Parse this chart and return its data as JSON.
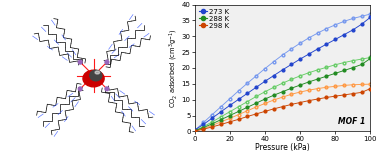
{
  "xlabel": "Pressure (kPa)",
  "ylabel": "CO$_2$ adsorbed (cm$^3$g$^{-1}$)",
  "xlim": [
    0,
    100
  ],
  "ylim": [
    0,
    40
  ],
  "xticks": [
    0,
    20,
    40,
    60,
    80,
    100
  ],
  "yticks": [
    0,
    5,
    10,
    15,
    20,
    25,
    30,
    35,
    40
  ],
  "annotation": "MOF 1",
  "series": [
    {
      "label": "273 K",
      "color_dark": "#2244CC",
      "color_light": "#7799EE",
      "ads_pressure": [
        0,
        5,
        10,
        15,
        20,
        25,
        30,
        35,
        40,
        45,
        50,
        55,
        60,
        65,
        70,
        75,
        80,
        85,
        90,
        95,
        100
      ],
      "ads_amount": [
        0.4,
        2.2,
        4.2,
        6.2,
        8.2,
        10.1,
        12.0,
        13.9,
        15.8,
        17.6,
        19.4,
        21.1,
        22.8,
        24.4,
        26.0,
        27.5,
        29.0,
        30.5,
        32.0,
        33.8,
        36.0
      ],
      "des_amount": [
        0.3,
        2.8,
        5.3,
        7.8,
        10.3,
        12.8,
        15.2,
        17.5,
        19.8,
        22.0,
        24.1,
        26.0,
        27.8,
        29.5,
        31.0,
        32.4,
        33.6,
        34.7,
        35.6,
        36.3,
        37.0
      ]
    },
    {
      "label": "288 K",
      "color_dark": "#228B22",
      "color_light": "#66CC66",
      "ads_pressure": [
        0,
        5,
        10,
        15,
        20,
        25,
        30,
        35,
        40,
        45,
        50,
        55,
        60,
        65,
        70,
        75,
        80,
        85,
        90,
        95,
        100
      ],
      "ads_amount": [
        0.2,
        1.2,
        2.4,
        3.7,
        5.0,
        6.3,
        7.6,
        8.9,
        10.2,
        11.4,
        12.5,
        13.6,
        14.6,
        15.6,
        16.5,
        17.4,
        18.3,
        19.2,
        20.1,
        21.1,
        23.0
      ],
      "des_amount": [
        0.2,
        1.5,
        3.0,
        4.6,
        6.2,
        7.8,
        9.4,
        11.0,
        12.5,
        13.9,
        15.2,
        16.4,
        17.5,
        18.5,
        19.4,
        20.2,
        21.0,
        21.7,
        22.3,
        22.8,
        23.3
      ]
    },
    {
      "label": "298 K",
      "color_dark": "#CC4400",
      "color_light": "#FF9944",
      "ads_pressure": [
        0,
        5,
        10,
        15,
        20,
        25,
        30,
        35,
        40,
        45,
        50,
        55,
        60,
        65,
        70,
        75,
        80,
        85,
        90,
        95,
        100
      ],
      "ads_amount": [
        0.1,
        0.7,
        1.4,
        2.2,
        3.0,
        3.8,
        4.7,
        5.5,
        6.3,
        7.1,
        7.8,
        8.5,
        9.1,
        9.7,
        10.2,
        10.7,
        11.1,
        11.5,
        11.9,
        12.3,
        13.5
      ],
      "des_amount": [
        0.1,
        0.9,
        1.9,
        3.0,
        4.1,
        5.3,
        6.5,
        7.7,
        8.8,
        9.9,
        10.8,
        11.7,
        12.4,
        13.0,
        13.5,
        13.9,
        14.2,
        14.5,
        14.7,
        14.8,
        14.9
      ]
    }
  ],
  "fig_bg": "#ffffff",
  "plot_bg": "#f0f0f0",
  "figsize": [
    3.78,
    1.51
  ],
  "dpi": 100
}
